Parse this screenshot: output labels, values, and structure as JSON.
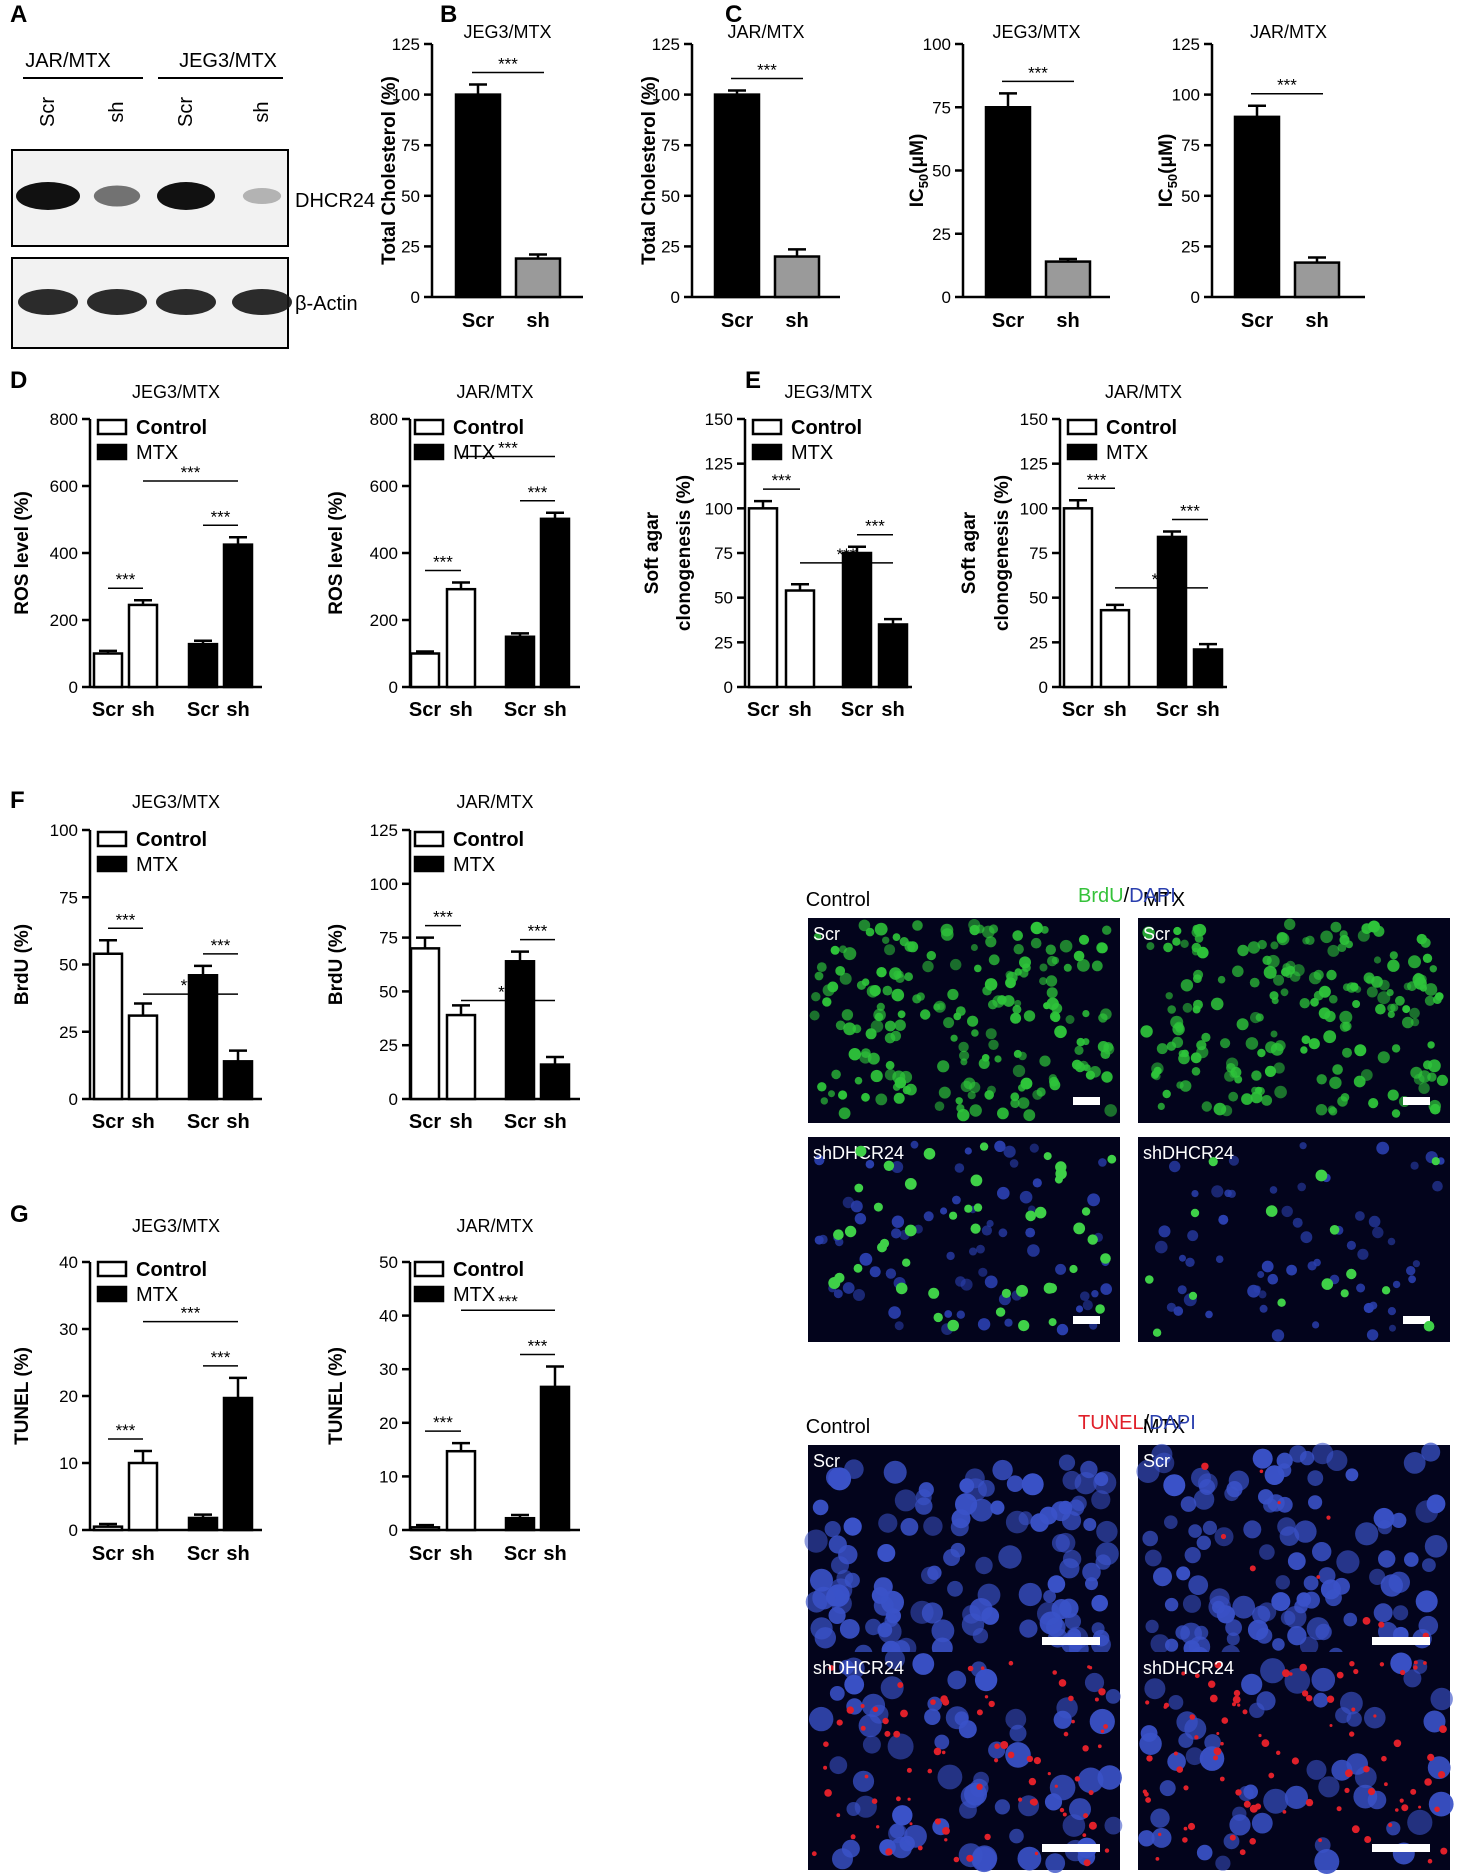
{
  "panel_letters": [
    "A",
    "B",
    "C",
    "D",
    "E",
    "F",
    "G"
  ],
  "blot": {
    "groups": [
      "JAR/MTX",
      "JEG3/MTX"
    ],
    "lanes": [
      "Scr",
      "sh",
      "Scr",
      "sh"
    ],
    "bands": [
      "DHCR24",
      "β-Actin"
    ],
    "dhcr24_intensity": [
      1.0,
      0.5,
      1.0,
      0.15
    ],
    "actin_intensity": [
      1.0,
      1.0,
      1.0,
      1.0
    ]
  },
  "microscopy": {
    "F": {
      "stain": [
        "BrdU",
        "/",
        "DAPI"
      ],
      "stain_colors": [
        "#35c23a",
        "#000000",
        "#2a3fae"
      ],
      "columns": [
        "Control",
        "MTX"
      ],
      "rows": [
        "Scr",
        "shDHCR24"
      ]
    },
    "G": {
      "stain": [
        "TUNEL",
        "/",
        "DAPI"
      ],
      "stain_colors": [
        "#e0202a",
        "#000000",
        "#2a3fae"
      ],
      "columns": [
        "Control",
        "MTX"
      ],
      "rows": [
        "Scr",
        "shDHCR24"
      ]
    }
  },
  "legend_labels": [
    "Control",
    "MTX"
  ],
  "chart_data": [
    {
      "id": "B1",
      "type": "bar",
      "title": "JEG3/MTX",
      "ylabel": "Total Cholesterol (%)",
      "ylim": [
        0,
        125
      ],
      "yticks": [
        "0",
        "25",
        "50",
        "75",
        "100",
        "125"
      ],
      "categories": [
        "Scr",
        "sh"
      ],
      "values": [
        100,
        19
      ],
      "errors": [
        5,
        2
      ],
      "colors": [
        "#000000",
        "#9a9a9a"
      ],
      "sig": [
        {
          "from": 0,
          "to": 1,
          "label": "***"
        }
      ]
    },
    {
      "id": "B2",
      "type": "bar",
      "title": "JAR/MTX",
      "ylabel": "Total Cholesterol (%)",
      "ylim": [
        0,
        125
      ],
      "yticks": [
        "0",
        "25",
        "50",
        "75",
        "100",
        "125"
      ],
      "categories": [
        "Scr",
        "sh"
      ],
      "values": [
        100,
        20
      ],
      "errors": [
        2,
        3.5
      ],
      "colors": [
        "#000000",
        "#9a9a9a"
      ],
      "sig": [
        {
          "from": 0,
          "to": 1,
          "label": "***"
        }
      ]
    },
    {
      "id": "C1",
      "type": "bar",
      "title": "JEG3/MTX",
      "ylabel": "IC50(μM)",
      "ylim": [
        0,
        100
      ],
      "yticks": [
        "0",
        "25",
        "50",
        "75",
        "100"
      ],
      "categories": [
        "Scr",
        "sh"
      ],
      "values": [
        75,
        14
      ],
      "errors": [
        5.5,
        1
      ],
      "colors": [
        "#000000",
        "#9a9a9a"
      ],
      "sig": [
        {
          "from": 0,
          "to": 1,
          "label": "***"
        }
      ]
    },
    {
      "id": "C2",
      "type": "bar",
      "title": "JAR/MTX",
      "ylabel": "IC50(μM)",
      "ylim": [
        0,
        125
      ],
      "yticks": [
        "0",
        "25",
        "50",
        "75",
        "100",
        "125"
      ],
      "categories": [
        "Scr",
        "sh"
      ],
      "values": [
        89,
        17
      ],
      "errors": [
        5.5,
        2.5
      ],
      "colors": [
        "#000000",
        "#9a9a9a"
      ],
      "sig": [
        {
          "from": 0,
          "to": 1,
          "label": "***"
        }
      ]
    },
    {
      "id": "D1",
      "type": "bar",
      "title": "JEG3/MTX",
      "ylabel": "ROS level (%)",
      "ylim": [
        0,
        800
      ],
      "yticks": [
        "0",
        "200",
        "400",
        "600",
        "800"
      ],
      "categories": [
        "Scr",
        "sh",
        "Scr",
        "sh"
      ],
      "values": [
        100,
        245,
        128,
        425
      ],
      "errors": [
        8,
        14,
        10,
        22
      ],
      "fills": [
        "open",
        "open",
        "solid",
        "solid"
      ],
      "legend": [
        "Control",
        "MTX"
      ],
      "sig": [
        {
          "from": 0,
          "to": 1,
          "label": "***"
        },
        {
          "from": 2,
          "to": 3,
          "label": "***"
        },
        {
          "from": 1,
          "to": 3,
          "label": "***"
        }
      ]
    },
    {
      "id": "D2",
      "type": "bar",
      "title": "JAR/MTX",
      "ylabel": "ROS level (%)",
      "ylim": [
        0,
        800
      ],
      "yticks": [
        "0",
        "200",
        "400",
        "600",
        "800"
      ],
      "categories": [
        "Scr",
        "sh",
        "Scr",
        "sh"
      ],
      "values": [
        100,
        292,
        150,
        502
      ],
      "errors": [
        6,
        20,
        10,
        18
      ],
      "fills": [
        "open",
        "open",
        "solid",
        "solid"
      ],
      "legend": [
        "Control",
        "MTX"
      ],
      "sig": [
        {
          "from": 0,
          "to": 1,
          "label": "***"
        },
        {
          "from": 2,
          "to": 3,
          "label": "***"
        },
        {
          "from": 1,
          "to": 3,
          "label": "***"
        }
      ]
    },
    {
      "id": "E1",
      "type": "bar",
      "title": "JEG3/MTX",
      "ylabel": "Soft agar clonogenesis (%)",
      "ylim": [
        0,
        150
      ],
      "yticks": [
        "0",
        "25",
        "50",
        "75",
        "100",
        "125",
        "150"
      ],
      "categories": [
        "Scr",
        "sh",
        "Scr",
        "sh"
      ],
      "values": [
        100,
        54,
        75,
        35
      ],
      "errors": [
        4,
        3.5,
        3.5,
        3
      ],
      "fills": [
        "open",
        "open",
        "solid",
        "solid"
      ],
      "legend": [
        "Control",
        "MTX"
      ],
      "sig": [
        {
          "from": 0,
          "to": 1,
          "label": "***"
        },
        {
          "from": 2,
          "to": 3,
          "label": "***"
        },
        {
          "from": 1,
          "to": 3,
          "label": "***"
        }
      ]
    },
    {
      "id": "E2",
      "type": "bar",
      "title": "JAR/MTX",
      "ylabel": "Soft agar clonogenesis (%)",
      "ylim": [
        0,
        150
      ],
      "yticks": [
        "0",
        "25",
        "50",
        "75",
        "100",
        "125",
        "150"
      ],
      "categories": [
        "Scr",
        "sh",
        "Scr",
        "sh"
      ],
      "values": [
        100,
        43,
        84,
        21
      ],
      "errors": [
        4.5,
        3,
        3,
        3
      ],
      "fills": [
        "open",
        "open",
        "solid",
        "solid"
      ],
      "legend": [
        "Control",
        "MTX"
      ],
      "sig": [
        {
          "from": 0,
          "to": 1,
          "label": "***"
        },
        {
          "from": 2,
          "to": 3,
          "label": "***"
        },
        {
          "from": 1,
          "to": 3,
          "label": "***"
        }
      ]
    },
    {
      "id": "F1",
      "type": "bar",
      "title": "JEG3/MTX",
      "ylabel": "BrdU (%)",
      "ylim": [
        0,
        100
      ],
      "yticks": [
        "0",
        "25",
        "50",
        "75",
        "100"
      ],
      "categories": [
        "Scr",
        "sh",
        "Scr",
        "sh"
      ],
      "values": [
        54,
        31,
        46,
        14
      ],
      "errors": [
        5,
        4.5,
        3.5,
        4
      ],
      "fills": [
        "open",
        "open",
        "solid",
        "solid"
      ],
      "legend": [
        "Control",
        "MTX"
      ],
      "sig": [
        {
          "from": 0,
          "to": 1,
          "label": "***"
        },
        {
          "from": 2,
          "to": 3,
          "label": "***"
        },
        {
          "from": 1,
          "to": 3,
          "label": "***"
        }
      ]
    },
    {
      "id": "F2",
      "type": "bar",
      "title": "JAR/MTX",
      "ylabel": "BrdU (%)",
      "ylim": [
        0,
        125
      ],
      "yticks": [
        "0",
        "25",
        "50",
        "75",
        "100",
        "125"
      ],
      "categories": [
        "Scr",
        "sh",
        "Scr",
        "sh"
      ],
      "values": [
        70,
        39,
        64,
        16
      ],
      "errors": [
        5,
        4.5,
        4.5,
        3.5
      ],
      "fills": [
        "open",
        "open",
        "solid",
        "solid"
      ],
      "legend": [
        "Control",
        "MTX"
      ],
      "sig": [
        {
          "from": 0,
          "to": 1,
          "label": "***"
        },
        {
          "from": 2,
          "to": 3,
          "label": "***"
        },
        {
          "from": 1,
          "to": 3,
          "label": "***"
        }
      ]
    },
    {
      "id": "G1",
      "type": "bar",
      "title": "JEG3/MTX",
      "ylabel": "TUNEL (%)",
      "ylim": [
        0,
        40
      ],
      "yticks": [
        "0",
        "10",
        "20",
        "30",
        "40"
      ],
      "categories": [
        "Scr",
        "sh",
        "Scr",
        "sh"
      ],
      "values": [
        0.5,
        10,
        1.8,
        19.7
      ],
      "errors": [
        0.4,
        1.8,
        0.5,
        3
      ],
      "fills": [
        "open",
        "open",
        "solid",
        "solid"
      ],
      "legend": [
        "Control",
        "MTX"
      ],
      "sig": [
        {
          "from": 0,
          "to": 1,
          "label": "***"
        },
        {
          "from": 2,
          "to": 3,
          "label": "***"
        },
        {
          "from": 1,
          "to": 3,
          "label": "***"
        }
      ]
    },
    {
      "id": "G2",
      "type": "bar",
      "title": "JAR/MTX",
      "ylabel": "TUNEL (%)",
      "ylim": [
        0,
        50
      ],
      "yticks": [
        "0",
        "10",
        "20",
        "30",
        "40",
        "50"
      ],
      "categories": [
        "Scr",
        "sh",
        "Scr",
        "sh"
      ],
      "values": [
        0.5,
        14.7,
        2.2,
        26.7
      ],
      "errors": [
        0.4,
        1.5,
        0.6,
        3.8
      ],
      "fills": [
        "open",
        "open",
        "solid",
        "solid"
      ],
      "legend": [
        "Control",
        "MTX"
      ],
      "sig": [
        {
          "from": 0,
          "to": 1,
          "label": "***"
        },
        {
          "from": 2,
          "to": 3,
          "label": "***"
        },
        {
          "from": 1,
          "to": 3,
          "label": "***"
        }
      ]
    }
  ]
}
